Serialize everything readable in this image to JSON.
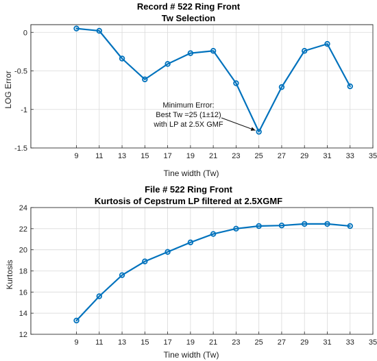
{
  "chart_data": [
    {
      "type": "line",
      "title": "Record # 522 Ring Front",
      "subtitle": "Tw Selection",
      "xlabel": "Tine width (Tw)",
      "ylabel": "LOG Error",
      "x": [
        9,
        11,
        13,
        15,
        17,
        19,
        21,
        23,
        25,
        27,
        29,
        31,
        33
      ],
      "values": [
        0.05,
        0.02,
        -0.34,
        -0.61,
        -0.41,
        -0.27,
        -0.24,
        -0.66,
        -1.29,
        -0.71,
        -0.24,
        -0.15,
        -0.7
      ],
      "xlim": [
        5,
        35
      ],
      "ylim": [
        -1.5,
        0.1
      ],
      "xticks": [
        9,
        11,
        13,
        15,
        17,
        19,
        21,
        23,
        25,
        27,
        29,
        31,
        33,
        35
      ],
      "yticks": [
        0,
        -0.5,
        -1,
        -1.5
      ],
      "ytick_labels": [
        "0",
        "-0.5",
        "-1",
        "-1.5"
      ],
      "grid": true,
      "series_color": "#0072BD",
      "annotation": {
        "lines": [
          "Minimum Error:",
          "Best Tw =25 (1±12)",
          "with LP at 2.5X GMF"
        ],
        "target_x": 25,
        "target_y": -1.29
      }
    },
    {
      "type": "line",
      "title": "File # 522 Ring Front",
      "subtitle": "Kurtosis of Cepstrum LP filtered at 2.5XGMF",
      "xlabel": "Tine width (Tw)",
      "ylabel": "Kurtosis",
      "x": [
        9,
        11,
        13,
        15,
        17,
        19,
        21,
        23,
        25,
        27,
        29,
        31,
        33
      ],
      "values": [
        13.3,
        15.6,
        17.6,
        18.9,
        19.8,
        20.7,
        21.5,
        22.0,
        22.25,
        22.3,
        22.45,
        22.45,
        22.25
      ],
      "xlim": [
        5,
        35
      ],
      "ylim": [
        12,
        24
      ],
      "xticks": [
        9,
        11,
        13,
        15,
        17,
        19,
        21,
        23,
        25,
        27,
        29,
        31,
        33,
        35
      ],
      "yticks": [
        12,
        14,
        16,
        18,
        20,
        22,
        24
      ],
      "ytick_labels": [
        "12",
        "14",
        "16",
        "18",
        "20",
        "22",
        "24"
      ],
      "grid": true,
      "series_color": "#0072BD"
    }
  ]
}
